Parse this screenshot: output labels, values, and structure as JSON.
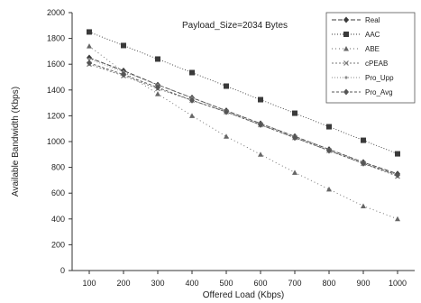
{
  "chart_data": {
    "type": "line",
    "annotation": "Payload_Size=2034  Bytes",
    "xlabel": "Offered Load (Kbps)",
    "ylabel": "Available Bandwidth (Kbps)",
    "x": [
      100,
      200,
      300,
      400,
      500,
      600,
      700,
      800,
      900,
      1000
    ],
    "xlim": [
      50,
      1050
    ],
    "ylim": [
      0,
      2000
    ],
    "yticks": [
      0,
      200,
      400,
      600,
      800,
      1000,
      1200,
      1400,
      1600,
      1800,
      2000
    ],
    "xtick_labels": [
      "100",
      "200",
      "300",
      "400",
      "500",
      "600",
      "700",
      "800",
      "900",
      "1000"
    ],
    "ytick_labels": [
      "0",
      "200",
      "400",
      "600",
      "800",
      "1000",
      "1200",
      "1400",
      "1600",
      "1800",
      "2000"
    ],
    "legend_position": "top-right",
    "grid": false,
    "series": [
      {
        "name": "Real",
        "marker": "diamond",
        "color": "#3a3a3a",
        "values": [
          1650,
          1550,
          1440,
          1340,
          1240,
          1140,
          1040,
          940,
          840,
          750
        ]
      },
      {
        "name": "AAC",
        "marker": "square",
        "color": "#3a3a3a",
        "values": [
          1850,
          1745,
          1640,
          1535,
          1430,
          1325,
          1220,
          1115,
          1010,
          905
        ]
      },
      {
        "name": "ABE",
        "marker": "triangle",
        "color": "#666666",
        "values": [
          1740,
          1540,
          1370,
          1200,
          1040,
          900,
          760,
          630,
          500,
          400
        ]
      },
      {
        "name": "cPEAB",
        "marker": "x",
        "color": "#777777",
        "values": [
          1600,
          1510,
          1410,
          1320,
          1230,
          1130,
          1030,
          930,
          830,
          730
        ]
      },
      {
        "name": "Pro_Upp",
        "marker": "dot",
        "color": "#8a8a8a",
        "values": [
          1640,
          1540,
          1440,
          1340,
          1240,
          1140,
          1040,
          940,
          840,
          740
        ]
      },
      {
        "name": "Pro_Avg",
        "marker": "diamond",
        "color": "#555555",
        "values": [
          1610,
          1520,
          1420,
          1320,
          1230,
          1130,
          1030,
          930,
          830,
          740
        ]
      }
    ]
  }
}
